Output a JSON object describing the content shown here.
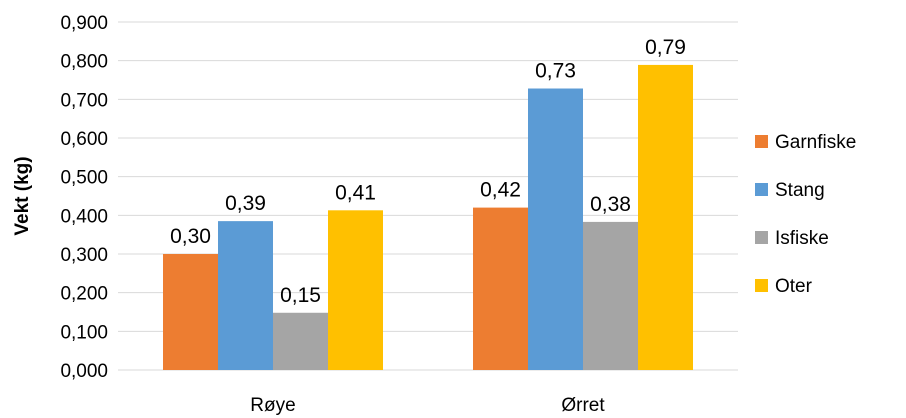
{
  "chart_data": {
    "type": "bar",
    "title": "",
    "xlabel": "",
    "ylabel": "Vekt (kg)",
    "categories": [
      "Røye",
      "Ørret"
    ],
    "series": [
      {
        "name": "Garnfiske",
        "color": "#ED7D31",
        "values": [
          0.3,
          0.42
        ],
        "labels": [
          "0,30",
          "0,42"
        ]
      },
      {
        "name": "Stang",
        "color": "#5B9BD5",
        "values": [
          0.385,
          0.728
        ],
        "labels": [
          "0,39",
          "0,73"
        ]
      },
      {
        "name": "Isfiske",
        "color": "#A5A5A5",
        "values": [
          0.148,
          0.383
        ],
        "labels": [
          "0,15",
          "0,38"
        ]
      },
      {
        "name": "Oter",
        "color": "#FFC000",
        "values": [
          0.413,
          0.789
        ],
        "labels": [
          "0,41",
          "0,79"
        ]
      }
    ],
    "ylim": [
      0,
      0.9
    ],
    "yticks": [
      "0,000",
      "0,100",
      "0,200",
      "0,300",
      "0,400",
      "0,500",
      "0,600",
      "0,700",
      "0,800",
      "0,900"
    ],
    "grid": true,
    "legend": "right"
  }
}
